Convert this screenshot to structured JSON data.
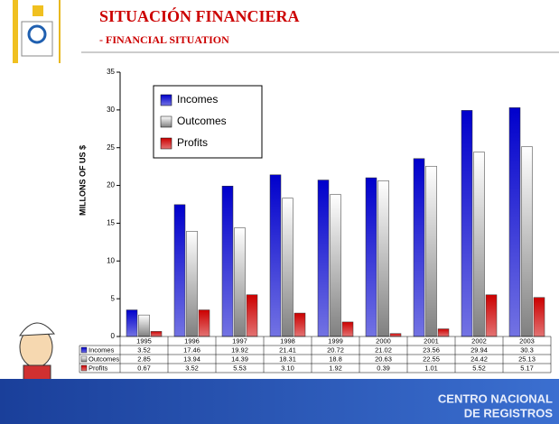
{
  "header": {
    "title": "SITUACIÓN FINANCIERA",
    "subtitle": "- FINANCIAL SITUATION"
  },
  "chart_data": {
    "type": "bar",
    "ylabel": "MILLONS OF  US $",
    "categories": [
      "1995",
      "1996",
      "1997",
      "1998",
      "1999",
      "2000",
      "2001",
      "2002",
      "2003"
    ],
    "series": [
      {
        "name": "Incomes",
        "color": "#0000cc",
        "values": [
          3.52,
          17.46,
          19.92,
          21.41,
          20.72,
          21.02,
          23.56,
          29.94,
          30.3
        ],
        "value_labels": [
          "3.52",
          "17.46",
          "19.92",
          "21.41",
          "20.72",
          "21.02",
          "23.56",
          "29.94",
          "30.3"
        ]
      },
      {
        "name": "Outcomes",
        "color": "#ffffff",
        "values": [
          2.85,
          13.94,
          14.39,
          18.31,
          18.8,
          20.63,
          22.55,
          24.42,
          25.13
        ],
        "value_labels": [
          "2.85",
          "13.94",
          "14.39",
          "18.31",
          "18.8",
          "20.63",
          "22.55",
          "24.42",
          "25.13"
        ]
      },
      {
        "name": "Profits",
        "color": "#cc0000",
        "values": [
          0.67,
          3.52,
          5.53,
          3.1,
          1.92,
          0.39,
          1.01,
          5.52,
          5.17
        ],
        "value_labels": [
          "0.67",
          "3.52",
          "5.53",
          "3.10",
          "1.92",
          "0.39",
          "1.01",
          "5.52",
          "5.17"
        ]
      }
    ],
    "ylim": [
      0,
      35
    ],
    "yticks": [
      0,
      5,
      10,
      15,
      20,
      25,
      30,
      35
    ],
    "legend": "upper-left"
  },
  "footer": {
    "line1": "CENTRO NACIONAL",
    "line2": "DE REGISTROS"
  }
}
